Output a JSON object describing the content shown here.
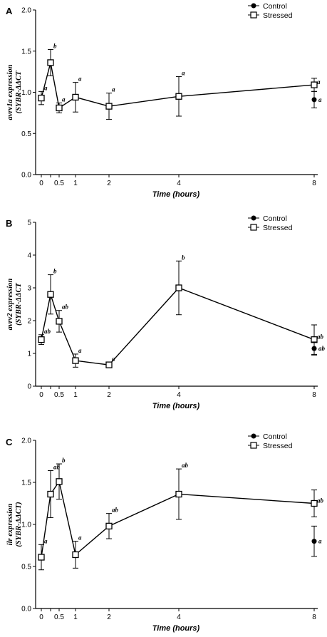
{
  "chart_data": [
    {
      "type": "line",
      "panel": "A",
      "ylabel_line1": "avrv1a expression",
      "ylabel_line2": "(SYBR-ΔΔCT",
      "xlabel": "Time (hours)",
      "x_ticks": [
        "0",
        "0.5",
        "1",
        "2",
        "4",
        "8"
      ],
      "y_ticks": [
        "0.0",
        "0.5",
        "1.0",
        "1.5",
        "2.0"
      ],
      "ylim": [
        0,
        2.0
      ],
      "legend": [
        "Control",
        "Stressed"
      ],
      "series": [
        {
          "name": "Stressed",
          "marker": "open-square",
          "x": [
            0,
            0.25,
            0.5,
            1,
            2,
            4,
            8
          ],
          "y": [
            0.93,
            1.36,
            0.81,
            0.94,
            0.83,
            0.95,
            1.09
          ],
          "err": [
            0.08,
            0.16,
            0.06,
            0.18,
            0.16,
            0.24,
            0.08
          ],
          "labels": [
            "a",
            "b",
            "a",
            "a",
            "a",
            "a",
            "a"
          ]
        },
        {
          "name": "Control",
          "marker": "filled-circle",
          "x": [
            8
          ],
          "y": [
            0.91
          ],
          "err": [
            0.1
          ],
          "labels": [
            "a"
          ]
        }
      ]
    },
    {
      "type": "line",
      "panel": "B",
      "ylabel_line1": "avrv2 expression",
      "ylabel_line2": "(SYBR-ΔΔCT",
      "xlabel": "Time (hours)",
      "x_ticks": [
        "0",
        "0.5",
        "1",
        "2",
        "4",
        "8"
      ],
      "y_ticks": [
        "0",
        "1",
        "2",
        "3",
        "4",
        "5"
      ],
      "ylim": [
        0,
        5
      ],
      "legend": [
        "Control",
        "Stressed"
      ],
      "series": [
        {
          "name": "Stressed",
          "marker": "open-square",
          "x": [
            0,
            0.25,
            0.5,
            1,
            2,
            4,
            8
          ],
          "y": [
            1.42,
            2.8,
            1.98,
            0.78,
            0.65,
            3.0,
            1.42
          ],
          "err": [
            0.15,
            0.6,
            0.33,
            0.2,
            0.08,
            0.82,
            0.45
          ],
          "labels": [
            "ab",
            "b",
            "ab",
            "a",
            "a",
            "b",
            "ab"
          ]
        },
        {
          "name": "Control",
          "marker": "filled-circle",
          "x": [
            8
          ],
          "y": [
            1.15
          ],
          "err": [
            0.2
          ],
          "labels": [
            "ab"
          ]
        }
      ]
    },
    {
      "type": "line",
      "panel": "C",
      "ylabel_line1": "ilr expression",
      "ylabel_line2": "(SYBR-ΔΔCT)",
      "xlabel": "Time (hours)",
      "x_ticks": [
        "0",
        "0.5",
        "1",
        "2",
        "4",
        "8"
      ],
      "y_ticks": [
        "0.0",
        "0.5",
        "1.0",
        "1.5",
        "2.0"
      ],
      "ylim": [
        0,
        2.0
      ],
      "legend": [
        "Control",
        "Stressed"
      ],
      "series": [
        {
          "name": "Stressed",
          "marker": "open-square",
          "x": [
            0,
            0.25,
            0.5,
            1,
            2,
            4,
            8
          ],
          "y": [
            0.61,
            1.36,
            1.51,
            0.64,
            0.98,
            1.36,
            1.25
          ],
          "err": [
            0.15,
            0.28,
            0.21,
            0.16,
            0.15,
            0.3,
            0.16
          ],
          "labels": [
            "a",
            "ab",
            "b",
            "a",
            "ab",
            "ab",
            "ab"
          ]
        },
        {
          "name": "Control",
          "marker": "filled-circle",
          "x": [
            8
          ],
          "y": [
            0.8
          ],
          "err": [
            0.18
          ],
          "labels": [
            "a"
          ]
        }
      ]
    }
  ]
}
